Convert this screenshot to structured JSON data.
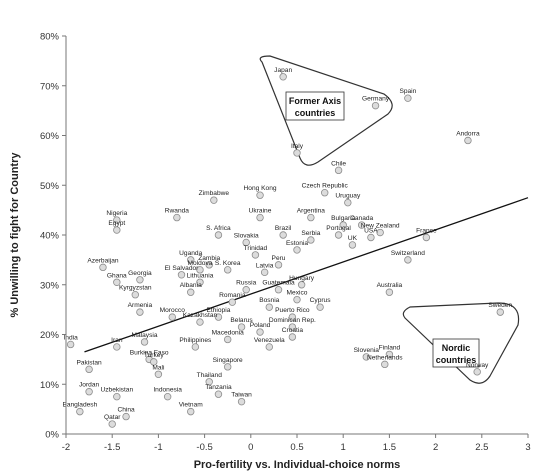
{
  "chart_data": {
    "type": "scatter",
    "title": "",
    "xlabel": "Pro-fertility vs. Individual-choice norms",
    "ylabel": "% Unwilling to fight for Country",
    "xlim": [
      -2,
      3
    ],
    "ylim": [
      0,
      80
    ],
    "x_ticks": [
      "-2",
      "-1.5",
      "-1",
      "-0.5",
      "0",
      "0.5",
      "1",
      "1.5",
      "2",
      "2.5",
      "3"
    ],
    "y_ticks": [
      "0%",
      "10%",
      "20%",
      "30%",
      "40%",
      "50%",
      "60%",
      "70%",
      "80%"
    ],
    "grid": false,
    "point_color": "#dcdcdc",
    "point_stroke": "#8c8c8c",
    "trendline": {
      "x": [
        -1.8,
        3.0
      ],
      "y": [
        16.5,
        47.5
      ]
    },
    "annotations": [
      {
        "text_lines": [
          "Former Axis",
          "countries"
        ],
        "shape": "triangle"
      },
      {
        "text_lines": [
          "Nordic",
          "countries"
        ],
        "shape": "triangle"
      }
    ],
    "points": [
      {
        "label": "Japan",
        "x": 0.35,
        "y": 71.8
      },
      {
        "label": "Spain",
        "x": 1.7,
        "y": 67.5
      },
      {
        "label": "Germany",
        "x": 1.35,
        "y": 66.0
      },
      {
        "label": "Andorra",
        "x": 2.35,
        "y": 59.0
      },
      {
        "label": "Italy",
        "x": 0.5,
        "y": 56.5
      },
      {
        "label": "Chile",
        "x": 0.95,
        "y": 53.0
      },
      {
        "label": "Czech Republic",
        "x": 0.8,
        "y": 48.5
      },
      {
        "label": "Hong Kong",
        "x": 0.1,
        "y": 48.0
      },
      {
        "label": "Zimbabwe",
        "x": -0.4,
        "y": 47.0
      },
      {
        "label": "Uruguay",
        "x": 1.05,
        "y": 46.5
      },
      {
        "label": "Nigeria",
        "x": -1.45,
        "y": 43.0
      },
      {
        "label": "Rwanda",
        "x": -0.8,
        "y": 43.5
      },
      {
        "label": "Ukraine",
        "x": 0.1,
        "y": 43.5
      },
      {
        "label": "Argentina",
        "x": 0.65,
        "y": 43.5
      },
      {
        "label": "Bulgaria",
        "x": 1.0,
        "y": 42.0
      },
      {
        "label": "Canada",
        "x": 1.2,
        "y": 42.0
      },
      {
        "label": "Egypt",
        "x": -1.45,
        "y": 41.0
      },
      {
        "label": "New Zealand",
        "x": 1.4,
        "y": 40.5
      },
      {
        "label": "Brazil",
        "x": 0.35,
        "y": 40.0
      },
      {
        "label": "Portugal",
        "x": 0.95,
        "y": 40.0
      },
      {
        "label": "S. Africa",
        "x": -0.35,
        "y": 40.0
      },
      {
        "label": "France",
        "x": 1.9,
        "y": 39.5
      },
      {
        "label": "USA",
        "x": 1.3,
        "y": 39.5
      },
      {
        "label": "Serbia",
        "x": 0.65,
        "y": 39.0
      },
      {
        "label": "Slovakia",
        "x": -0.05,
        "y": 38.5
      },
      {
        "label": "UK",
        "x": 1.1,
        "y": 38.0
      },
      {
        "label": "Estonia",
        "x": 0.5,
        "y": 37.0
      },
      {
        "label": "Switzerland",
        "x": 1.7,
        "y": 35.0
      },
      {
        "label": "Uganda",
        "x": -0.65,
        "y": 35.0
      },
      {
        "label": "Trinidad",
        "x": 0.05,
        "y": 36.0
      },
      {
        "label": "Zambia",
        "x": -0.45,
        "y": 34.0
      },
      {
        "label": "Peru",
        "x": 0.3,
        "y": 34.0
      },
      {
        "label": "Moldova",
        "x": -0.55,
        "y": 33.0
      },
      {
        "label": "S. Korea",
        "x": -0.25,
        "y": 33.0
      },
      {
        "label": "Azerbaijan",
        "x": -1.6,
        "y": 33.5
      },
      {
        "label": "El Salvador",
        "x": -0.75,
        "y": 32.0
      },
      {
        "label": "Latvia",
        "x": 0.15,
        "y": 32.5
      },
      {
        "label": "Georgia",
        "x": -1.2,
        "y": 31.0
      },
      {
        "label": "Ghana",
        "x": -1.45,
        "y": 30.5
      },
      {
        "label": "Lithuania",
        "x": -0.55,
        "y": 30.5
      },
      {
        "label": "Hungary",
        "x": 0.55,
        "y": 30.0
      },
      {
        "label": "Australia",
        "x": 1.5,
        "y": 28.5
      },
      {
        "label": "Albania",
        "x": -0.65,
        "y": 28.5
      },
      {
        "label": "Russia",
        "x": -0.05,
        "y": 29.0
      },
      {
        "label": "Guatemala",
        "x": 0.3,
        "y": 29.0
      },
      {
        "label": "Kyrgyzstan",
        "x": -1.25,
        "y": 28.0
      },
      {
        "label": "Mexico",
        "x": 0.5,
        "y": 27.0
      },
      {
        "label": "Romania",
        "x": -0.2,
        "y": 26.5
      },
      {
        "label": "Bosnia",
        "x": 0.2,
        "y": 25.5
      },
      {
        "label": "Cyprus",
        "x": 0.75,
        "y": 25.5
      },
      {
        "label": "Armenia",
        "x": -1.2,
        "y": 24.5
      },
      {
        "label": "Morocco",
        "x": -0.85,
        "y": 23.5
      },
      {
        "label": "Ethiopia",
        "x": -0.35,
        "y": 23.5
      },
      {
        "label": "Puerto Rico",
        "x": 0.45,
        "y": 23.5
      },
      {
        "label": "Kazakhstan",
        "x": -0.55,
        "y": 22.5
      },
      {
        "label": "Belarus",
        "x": -0.1,
        "y": 21.5
      },
      {
        "label": "Dominican Rep.",
        "x": 0.45,
        "y": 21.5
      },
      {
        "label": "Poland",
        "x": 0.1,
        "y": 20.5
      },
      {
        "label": "Sweden",
        "x": 2.7,
        "y": 24.5
      },
      {
        "label": "Croatia",
        "x": 0.45,
        "y": 19.5
      },
      {
        "label": "Macedonia",
        "x": -0.25,
        "y": 19.0
      },
      {
        "label": "India",
        "x": -1.95,
        "y": 18.0
      },
      {
        "label": "Malaysia",
        "x": -1.15,
        "y": 18.5
      },
      {
        "label": "Iran",
        "x": -1.45,
        "y": 17.5
      },
      {
        "label": "Philippines",
        "x": -0.6,
        "y": 17.5
      },
      {
        "label": "Venezuela",
        "x": 0.2,
        "y": 17.5
      },
      {
        "label": "Finland",
        "x": 1.5,
        "y": 16.0
      },
      {
        "label": "Slovenia",
        "x": 1.25,
        "y": 15.5
      },
      {
        "label": "Burkina Faso",
        "x": -1.1,
        "y": 15.0
      },
      {
        "label": "Turkey",
        "x": -1.05,
        "y": 14.5
      },
      {
        "label": "Netherlands",
        "x": 1.45,
        "y": 14.0
      },
      {
        "label": "Singapore",
        "x": -0.25,
        "y": 13.5
      },
      {
        "label": "Pakistan",
        "x": -1.75,
        "y": 13.0
      },
      {
        "label": "Norway",
        "x": 2.45,
        "y": 12.5
      },
      {
        "label": "Mali",
        "x": -1.0,
        "y": 12.0
      },
      {
        "label": "Thailand",
        "x": -0.45,
        "y": 10.5
      },
      {
        "label": "Jordan",
        "x": -1.75,
        "y": 8.5
      },
      {
        "label": "Uzbekistan",
        "x": -1.45,
        "y": 7.5
      },
      {
        "label": "Indonesia",
        "x": -0.9,
        "y": 7.5
      },
      {
        "label": "Tanzania",
        "x": -0.35,
        "y": 8.0
      },
      {
        "label": "Taiwan",
        "x": -0.1,
        "y": 6.5
      },
      {
        "label": "Bangladesh",
        "x": -1.85,
        "y": 4.5
      },
      {
        "label": "China",
        "x": -1.35,
        "y": 3.5
      },
      {
        "label": "Vietnam",
        "x": -0.65,
        "y": 4.5
      },
      {
        "label": "Qatar",
        "x": -1.5,
        "y": 2.0
      }
    ]
  }
}
